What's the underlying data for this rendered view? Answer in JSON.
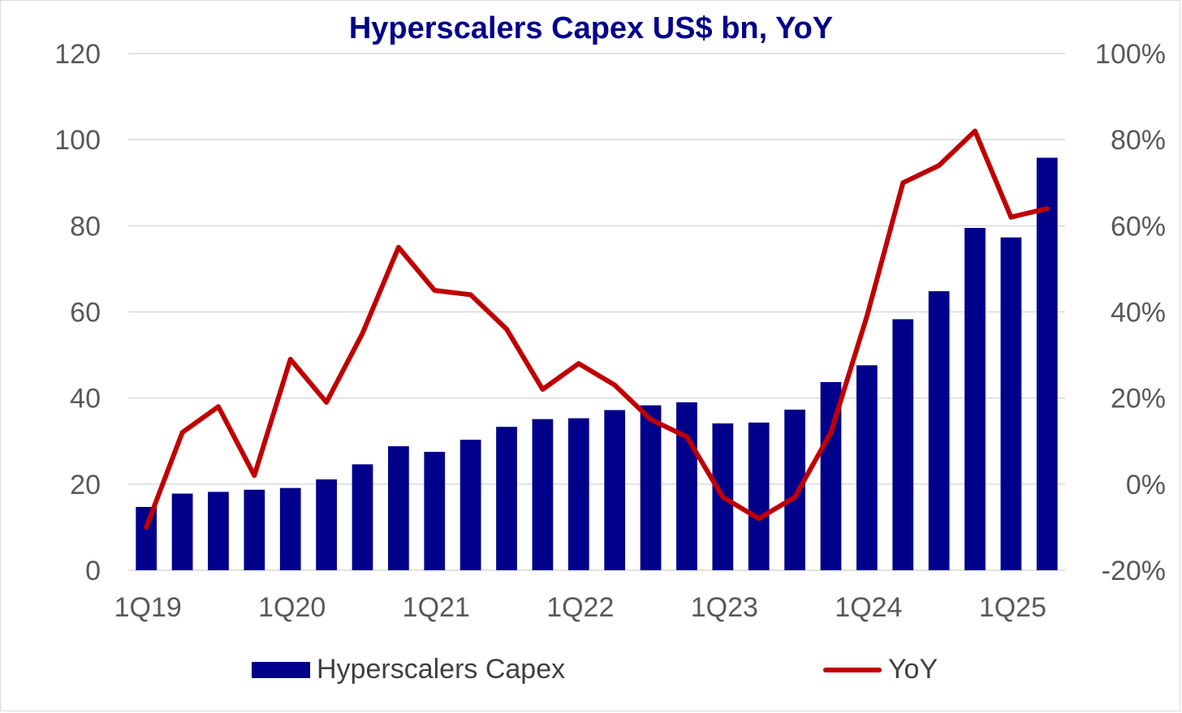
{
  "chart_data": {
    "type": "bar",
    "title": "Hyperscalers Capex US$ bn, YoY",
    "categories": [
      "1Q19",
      "2Q19",
      "3Q19",
      "4Q19",
      "1Q20",
      "2Q20",
      "3Q20",
      "4Q20",
      "1Q21",
      "2Q21",
      "3Q21",
      "4Q21",
      "1Q22",
      "2Q22",
      "3Q22",
      "4Q22",
      "1Q23",
      "2Q23",
      "3Q23",
      "4Q23",
      "1Q24",
      "2Q24",
      "3Q24",
      "4Q24",
      "1Q25",
      "2Q25"
    ],
    "x_tick_labels": [
      "1Q19",
      "1Q20",
      "1Q21",
      "1Q22",
      "1Q23",
      "1Q24",
      "1Q25"
    ],
    "series": [
      {
        "name": "Hyperscalers Capex",
        "type": "bar",
        "axis": "left",
        "color": "#00008b",
        "values": [
          14.7,
          17.8,
          18.2,
          18.7,
          19.1,
          21.1,
          24.6,
          28.8,
          27.5,
          30.3,
          33.3,
          35.1,
          35.3,
          37.2,
          38.3,
          39.0,
          34.1,
          34.3,
          37.3,
          43.7,
          47.6,
          58.3,
          64.8,
          79.5,
          77.3,
          95.8
        ]
      },
      {
        "name": "YoY",
        "type": "line",
        "axis": "right",
        "color": "#c00000",
        "values": [
          -0.1,
          0.12,
          0.18,
          0.02,
          0.29,
          0.19,
          0.35,
          0.55,
          0.45,
          0.44,
          0.36,
          0.22,
          0.28,
          0.23,
          0.15,
          0.11,
          -0.03,
          -0.08,
          -0.03,
          0.12,
          0.39,
          0.7,
          0.74,
          0.82,
          0.62,
          0.64
        ]
      }
    ],
    "y_left": {
      "min": 0,
      "max": 120,
      "ticks": [
        0,
        20,
        40,
        60,
        80,
        100,
        120
      ],
      "tick_labels": [
        "0",
        "20",
        "40",
        "60",
        "80",
        "100",
        "120"
      ]
    },
    "y_right": {
      "min": -0.2,
      "max": 1.0,
      "ticks": [
        -0.2,
        0,
        0.2,
        0.4,
        0.6,
        0.8,
        1.0
      ],
      "tick_labels": [
        "-20%",
        "0%",
        "20%",
        "40%",
        "60%",
        "80%",
        "100%"
      ]
    },
    "grid": true,
    "legend_position": "bottom"
  }
}
